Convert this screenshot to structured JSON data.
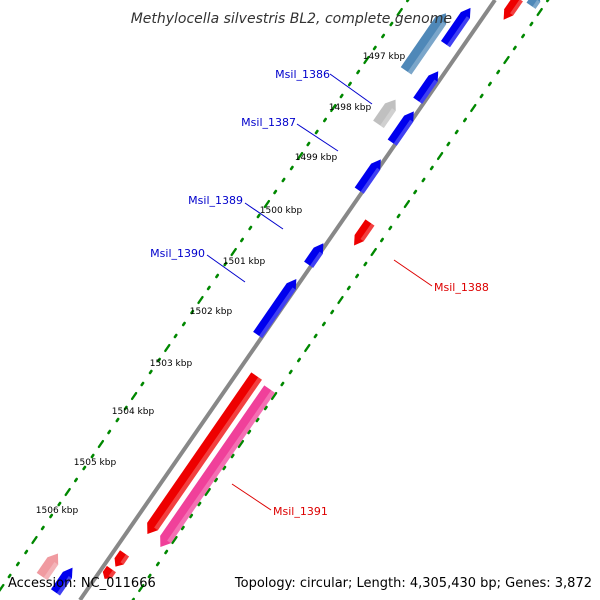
{
  "title": "Methylocella silvestris BL2, complete genome",
  "footer": {
    "accession": "Accession: NC_011666",
    "summary": "Topology: circular; Length: 4,305,430 bp; Genes: 3,872"
  },
  "colors": {
    "forward_gene": "#0000ee",
    "reverse_gene": "#ee0000",
    "forward_rna": "#4f88b8",
    "reverse_rna": "#f0409a",
    "other_feature": "#c0c0c0",
    "backbone": "#888888",
    "tick": "#008800"
  },
  "scale_ticks": [
    {
      "label": "1497 kbp"
    },
    {
      "label": "1498 kbp"
    },
    {
      "label": "1499 kbp"
    },
    {
      "label": "1500 kbp"
    },
    {
      "label": "1501 kbp"
    },
    {
      "label": "1502 kbp"
    },
    {
      "label": "1503 kbp"
    },
    {
      "label": "1504 kbp"
    },
    {
      "label": "1505 kbp"
    },
    {
      "label": "1506 kbp"
    }
  ],
  "gene_labels": [
    {
      "name": "Msil_1386",
      "strand": "forward"
    },
    {
      "name": "Msil_1387",
      "strand": "forward"
    },
    {
      "name": "Msil_1389",
      "strand": "forward"
    },
    {
      "name": "Msil_1390",
      "strand": "forward"
    },
    {
      "name": "Msil_1388",
      "strand": "reverse"
    },
    {
      "name": "Msil_1391",
      "strand": "reverse"
    }
  ]
}
